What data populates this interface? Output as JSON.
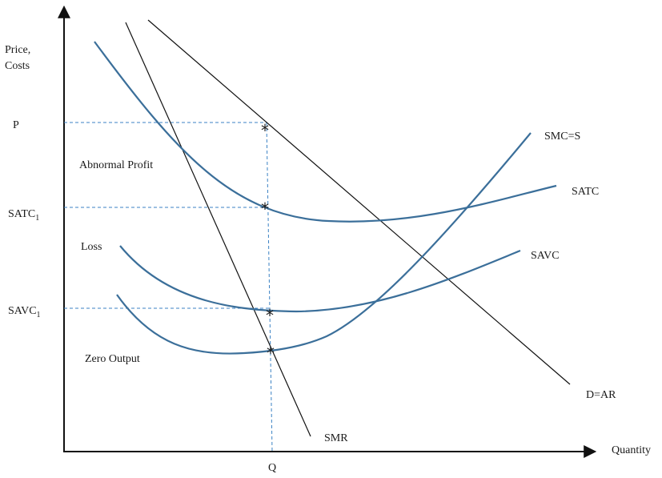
{
  "axes": {
    "y_label_line1": "Price,",
    "y_label_line2": "Costs",
    "x_label": "Quantity",
    "x_tick": "Q",
    "y_ticks": {
      "p": "P",
      "satc1_base": "SATC",
      "satc1_sub": "1",
      "savc1_base": "SAVC",
      "savc1_sub": "1"
    }
  },
  "curves": {
    "smc": "SMC=S",
    "satc": "SATC",
    "savc": "SAVC",
    "demand": "D=AR",
    "smr": "SMR"
  },
  "regions": {
    "abnormal_profit": "Abnormal Profit",
    "loss": "Loss",
    "zero_output": "Zero Output"
  },
  "marker_symbol": "*",
  "colors": {
    "curve": "#3b6f9a",
    "guide": "#3b82c4",
    "line": "#111111"
  }
}
